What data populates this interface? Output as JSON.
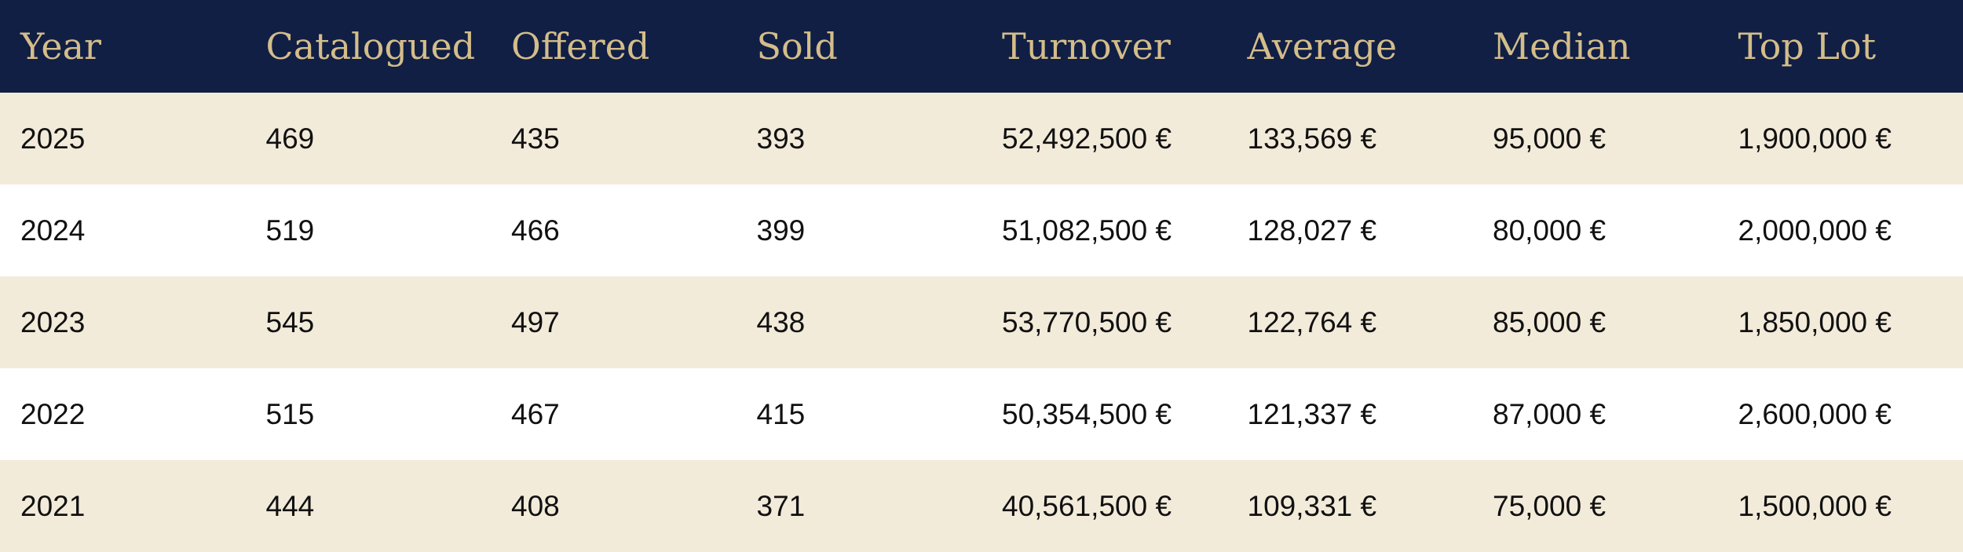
{
  "table": {
    "columns": [
      "Year",
      "Catalogued",
      "Offered",
      "Sold",
      "Turnover",
      "Average",
      "Median",
      "Top Lot"
    ],
    "rows": [
      [
        "2025",
        "469",
        "435",
        "393",
        "52,492,500 €",
        "133,569 €",
        "95,000 €",
        "1,900,000 €"
      ],
      [
        "2024",
        "519",
        "466",
        "399",
        "51,082,500 €",
        "128,027 €",
        "80,000 €",
        "2,000,000 €"
      ],
      [
        "2023",
        "545",
        "497",
        "438",
        "53,770,500 €",
        "122,764 €",
        "85,000 €",
        "1,850,000 €"
      ],
      [
        "2022",
        "515",
        "467",
        "415",
        "50,354,500 €",
        "121,337 €",
        "87,000 €",
        "2,600,000 €"
      ],
      [
        "2021",
        "444",
        "408",
        "371",
        "40,561,500 €",
        "109,331 €",
        "75,000 €",
        "1,500,000 €"
      ]
    ]
  },
  "colors": {
    "header_background": "#111f45",
    "header_text": "#d4bd8a",
    "stripe_background": "#f3ebda",
    "row_background": "#ffffff",
    "body_text": "#111111"
  }
}
